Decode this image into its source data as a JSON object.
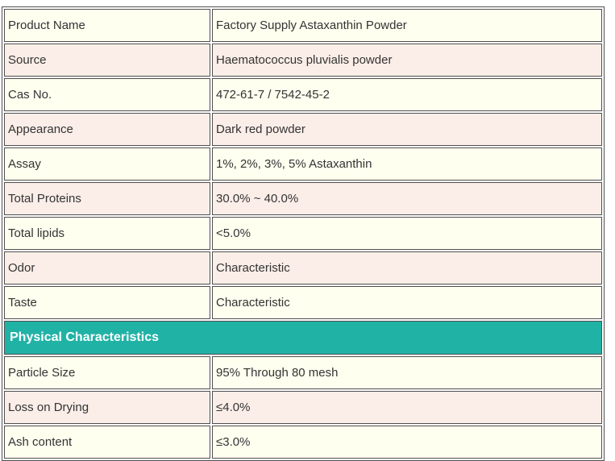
{
  "table": {
    "rows_top": [
      {
        "label": "Product Name",
        "value": "Factory Supply Astaxanthin Powder"
      },
      {
        "label": "Source",
        "value": "Haematococcus pluvialis powder"
      },
      {
        "label": "Cas No.",
        "value": "472-61-7 / 7542-45-2"
      },
      {
        "label": "Appearance",
        "value": "Dark red powder"
      },
      {
        "label": "Assay",
        "value": "1%, 2%, 3%, 5% Astaxanthin"
      },
      {
        "label": "Total Proteins",
        "value": "30.0% ~ 40.0%"
      },
      {
        "label": "Total lipids",
        "value": "<5.0%"
      },
      {
        "label": "Odor",
        "value": "Characteristic"
      },
      {
        "label": "Taste",
        "value": "Characteristic"
      }
    ],
    "section_header": "Physical Characteristics",
    "rows_physical": [
      {
        "label": "Particle Size",
        "value": "95% Through 80 mesh"
      },
      {
        "label": "Loss on Drying",
        "value": "≤4.0%"
      },
      {
        "label": "Ash content",
        "value": "≤3.0%"
      }
    ]
  },
  "colors": {
    "row_ivory": "#fffff0",
    "row_pink": "#fbeee8",
    "section_bg": "#21b2a6",
    "section_text": "#ffffff",
    "border": "#4f4f4f",
    "text": "#333333"
  }
}
